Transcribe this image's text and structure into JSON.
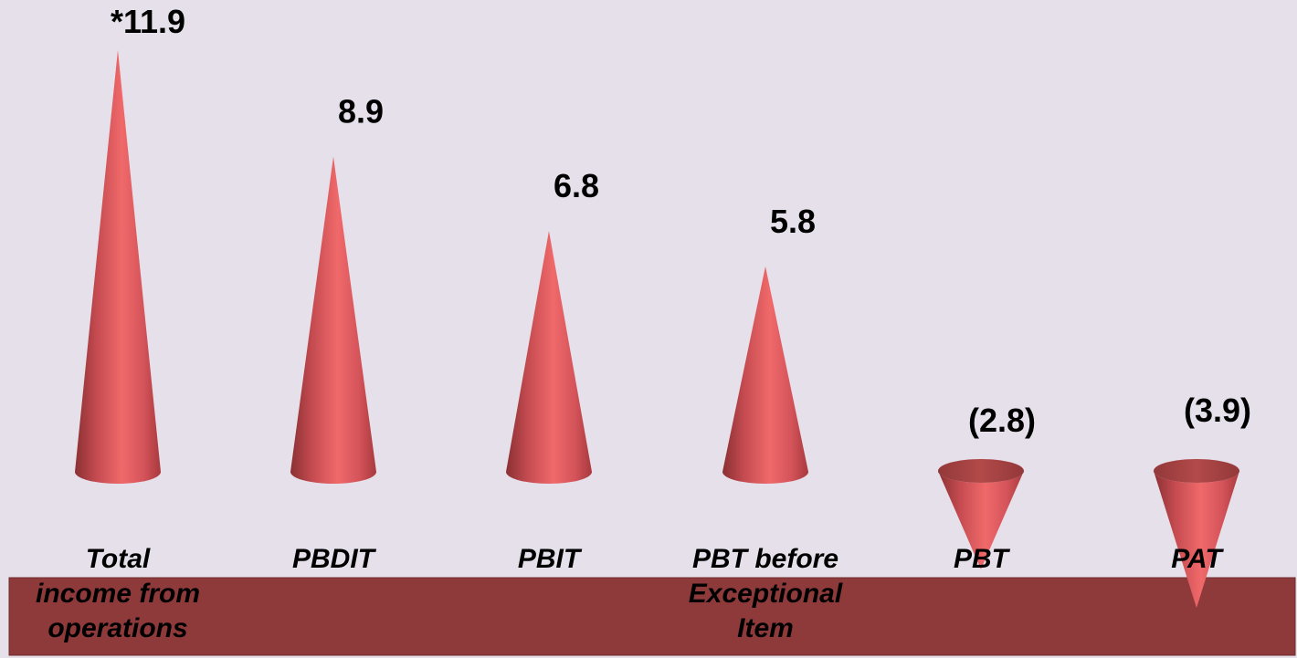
{
  "chart_data": {
    "type": "bar",
    "mark_shape": "cone",
    "categories": [
      "Total income from operations",
      "PBDIT",
      "PBIT",
      "PBT before Exceptional Item",
      "PBT",
      "PAT"
    ],
    "category_lines": [
      [
        "Total",
        "income from",
        "operations"
      ],
      [
        "PBDIT"
      ],
      [
        "PBIT"
      ],
      [
        "PBT before",
        "Exceptional",
        "Item"
      ],
      [
        "PBT"
      ],
      [
        "PAT"
      ]
    ],
    "values": [
      11.9,
      8.9,
      6.8,
      5.8,
      -2.8,
      -3.9
    ],
    "data_labels": [
      "*11.9",
      "8.9",
      "6.8",
      "5.8",
      "(2.8)",
      "(3.9)"
    ],
    "title": "",
    "xlabel": "",
    "ylabel": "",
    "grid": false,
    "legend": "none",
    "colors": {
      "background": "#e6e0ea",
      "cone_light": "#f0696a",
      "cone_mid": "#d4545a",
      "cone_dark": "#8a3033",
      "cone_top": "#a8403f",
      "band": "#8e3a3b",
      "text": "#000000"
    }
  }
}
